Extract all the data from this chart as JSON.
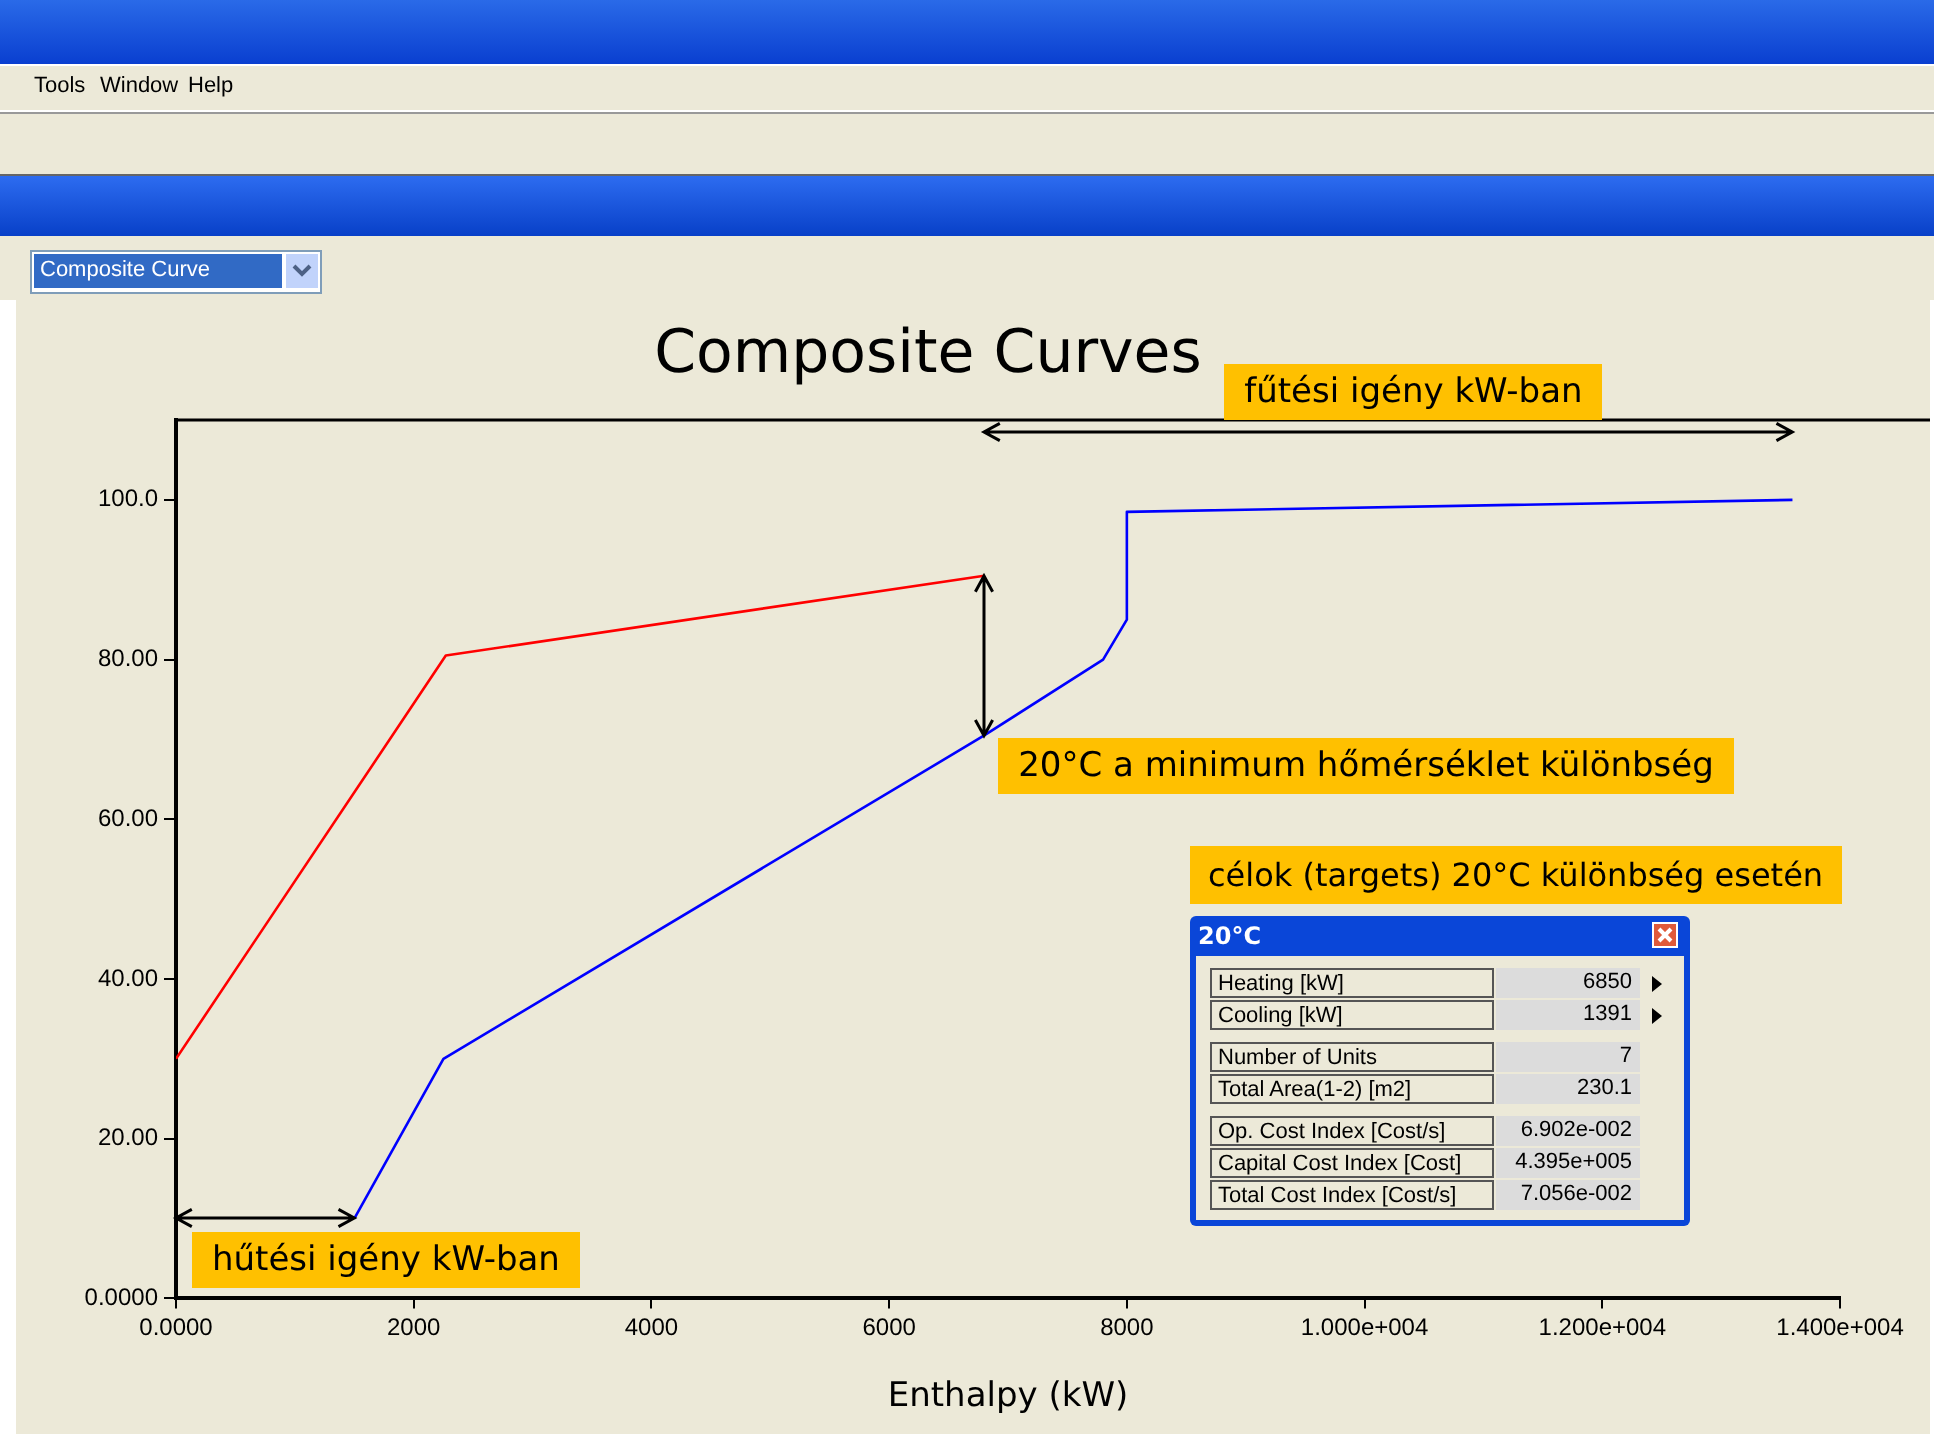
{
  "chart_data": [
    {
      "type": "other",
      "annotations": [
        "Tools",
        "Window",
        "Help",
        "Composite Curve"
      ]
    },
    {
      "type": "line",
      "title": "Composite Curves",
      "xlabel": "Enthalpy (kW)",
      "xlim": [
        0,
        14000
      ],
      "xticks": [
        {
          "value": 0,
          "label": "0.0000"
        },
        2000,
        4000,
        6000,
        8000,
        {
          "value": 10000,
          "label": "1.000e+004"
        },
        {
          "value": 12000,
          "label": "1.200e+004"
        },
        {
          "value": 14000,
          "label": "1.400e+004"
        }
      ],
      "ylim": [
        0,
        110
      ],
      "yticks": [
        {
          "value": 0,
          "label": "0.0000"
        },
        {
          "value": 20,
          "label": "20.00"
        },
        {
          "value": 40,
          "label": "40.00"
        },
        {
          "value": 60,
          "label": "60.00"
        },
        {
          "value": 80,
          "label": "80.00"
        },
        {
          "value": 100,
          "label": "100.0"
        }
      ],
      "grid": false,
      "legend": false,
      "marker": "none",
      "line_style": "solid",
      "series": [
        {
          "color": "#ff0000",
          "x": [
            0,
            2270,
            6800
          ],
          "values": [
            30,
            80.5,
            90.5
          ]
        },
        {
          "color": "#0000ff",
          "x": [
            1500,
            2250,
            6800,
            7800,
            8000,
            8000,
            13600
          ],
          "values": [
            10,
            30,
            70.5,
            80,
            85,
            98.5,
            100
          ]
        }
      ],
      "annotations": [
        "hűtési igény kW-ban",
        "fűtési igény kW-ban",
        {
          "text": "20°C a minimum hőmérséklet különbség",
          "x": 6800,
          "y": 70.5
        }
      ]
    },
    {
      "type": "other",
      "title": "20°C",
      "subtitle": "célok (targets) 20°C különbség esetén",
      "annotations": [
        "Heating [kW]",
        "6850",
        "Cooling [kW]",
        "1391",
        "Number of Units",
        "7",
        "Total Area(1-2) [m2]",
        "230.1",
        "Op. Cost Index [Cost/s]",
        "6.902e-002",
        "Capital  Cost Index [Cost]",
        "4.395e+005",
        "Total Cost Index [Cost/s]",
        "7.056e-002"
      ]
    }
  ]
}
